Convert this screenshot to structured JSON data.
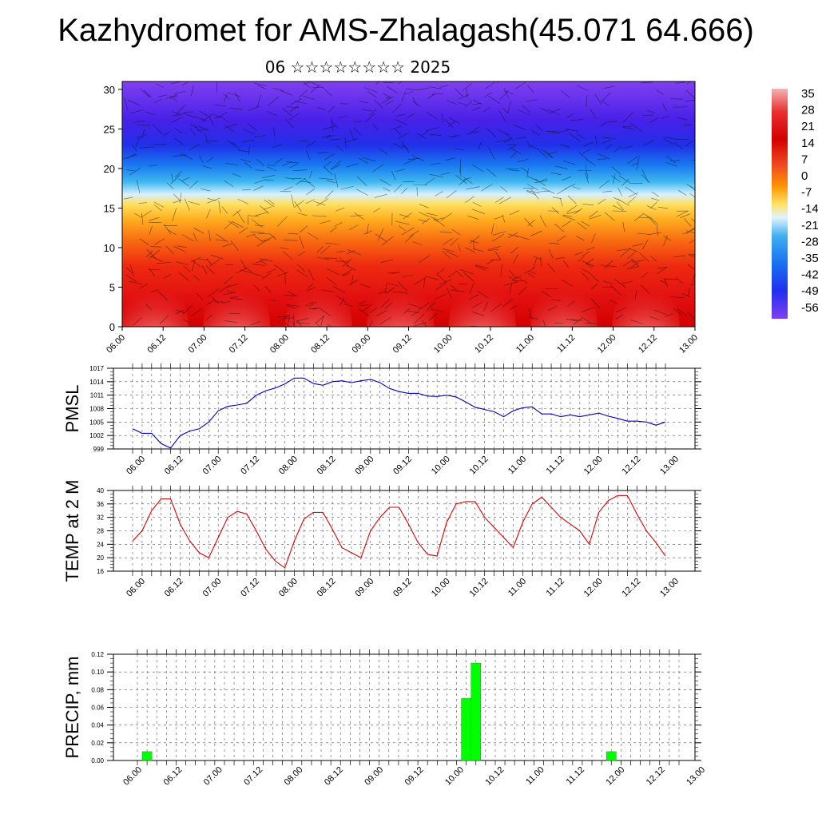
{
  "title": "Kazhydromet for AMS-Zhalagash(45.071 64.666)",
  "subtitle": "06 ☆☆☆☆☆☆☆☆ 2025",
  "time_labels": [
    "06.00",
    "06.12",
    "07.00",
    "07.12",
    "08.00",
    "08.12",
    "09.00",
    "09.12",
    "10.00",
    "10.12",
    "11.00",
    "11.12",
    "12.00",
    "12.12",
    "13.00"
  ],
  "chart_data": [
    {
      "type": "heatmap",
      "name": "temperature-wind-cross-section",
      "y_ticks": [
        0,
        5,
        10,
        15,
        20,
        25,
        30
      ],
      "ylim": [
        0,
        31
      ],
      "colorbar": {
        "labels": [
          "35",
          "28",
          "21",
          "14",
          "7",
          "0",
          "-7",
          "-14",
          "-21",
          "-28",
          "-35",
          "-42",
          "-49",
          "-56"
        ],
        "colors": [
          "#f4b4b4",
          "#e83030",
          "#d40000",
          "#e02020",
          "#f05020",
          "#ff9000",
          "#ffc030",
          "#ffe060",
          "#b0e0f0",
          "#40b0f0",
          "#2080f0",
          "#2040f0",
          "#4020f0",
          "#8040f0"
        ]
      }
    },
    {
      "type": "line",
      "ylabel": "PMSL",
      "ylim": [
        999,
        1017
      ],
      "y_ticks": [
        999,
        1002,
        1005,
        1008,
        1011,
        1014,
        1017
      ],
      "color": "#0000cc",
      "grid": true,
      "values": [
        1003.5,
        1002.5,
        1002.5,
        1000.2,
        999.2,
        1002.0,
        1003.0,
        1003.5,
        1005.0,
        1007.5,
        1008.5,
        1008.8,
        1009.2,
        1011.0,
        1012.0,
        1012.6,
        1013.5,
        1014.8,
        1014.8,
        1013.6,
        1013.2,
        1014.0,
        1014.2,
        1013.8,
        1014.2,
        1014.5,
        1013.8,
        1012.5,
        1011.8,
        1011.4,
        1011.4,
        1010.8,
        1010.7,
        1011.0,
        1010.6,
        1009.5,
        1008.3,
        1007.8,
        1007.3,
        1006.2,
        1007.5,
        1008.2,
        1008.4,
        1006.8,
        1006.8,
        1006.2,
        1006.6,
        1006.2,
        1006.6,
        1007.0,
        1006.3,
        1005.8,
        1005.2,
        1005.2,
        1005.0,
        1004.3,
        1005.0
      ]
    },
    {
      "type": "line",
      "ylabel": "TEMP at 2 M",
      "ylim": [
        16,
        40
      ],
      "y_ticks": [
        16,
        20,
        24,
        28,
        32,
        36,
        40
      ],
      "color": "#dd0000",
      "grid": true,
      "values": [
        25.0,
        28.0,
        34.0,
        37.5,
        37.5,
        30.0,
        25.0,
        21.5,
        20.0,
        26.0,
        32.0,
        33.8,
        33.0,
        28.0,
        22.5,
        19.0,
        17.0,
        25.0,
        31.5,
        33.5,
        33.5,
        28.5,
        23.0,
        21.5,
        20.0,
        28.0,
        32.0,
        35.0,
        35.0,
        30.0,
        24.5,
        21.0,
        20.5,
        30.5,
        36.0,
        36.7,
        36.7,
        32.0,
        29.0,
        26.0,
        23.0,
        30.5,
        36.0,
        38.0,
        35.0,
        32.0,
        30.0,
        28.0,
        24.0,
        33.5,
        37.0,
        38.5,
        38.5,
        33.0,
        28.0,
        24.5,
        20.5
      ]
    },
    {
      "type": "bar",
      "ylabel": "PRECIP, mm",
      "ylim": [
        0,
        0.12
      ],
      "y_ticks": [
        "0.00",
        "0.02",
        "0.04",
        "0.06",
        "0.08",
        "0.10",
        "0.12"
      ],
      "color": "#00ff00",
      "grid": true,
      "values": [
        0,
        0.01,
        0,
        0,
        0,
        0,
        0,
        0,
        0,
        0,
        0,
        0,
        0,
        0,
        0,
        0,
        0,
        0,
        0,
        0,
        0,
        0,
        0,
        0,
        0,
        0,
        0,
        0,
        0,
        0,
        0,
        0,
        0,
        0,
        0.07,
        0.11,
        0,
        0,
        0,
        0,
        0,
        0,
        0,
        0,
        0,
        0,
        0,
        0,
        0,
        0.01,
        0,
        0,
        0,
        0,
        0,
        0,
        0
      ]
    }
  ]
}
